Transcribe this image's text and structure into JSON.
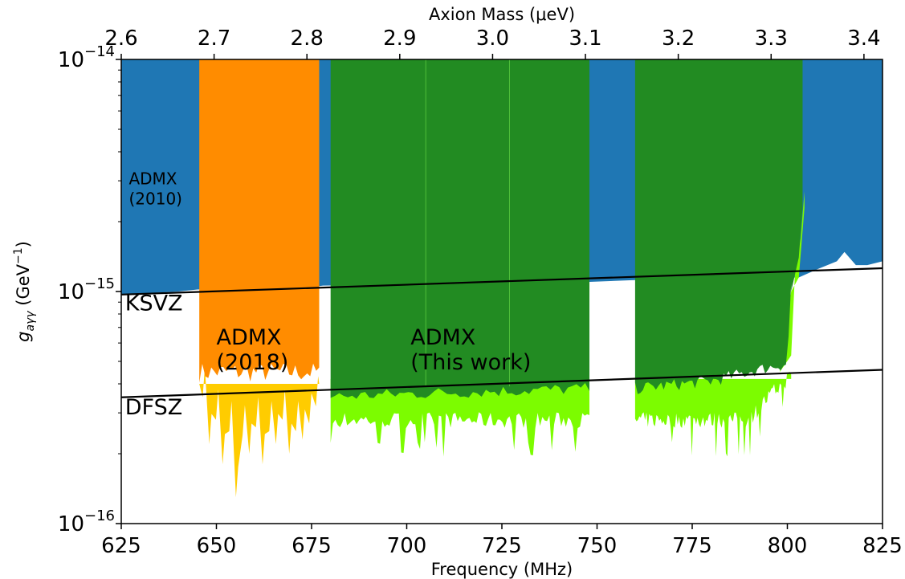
{
  "chart_data": {
    "type": "area",
    "title": "",
    "xlabel": "Frequency (MHz)",
    "ylabel": "g_{aγγ} (GeV⁻¹)",
    "ylabel_parts": {
      "symbol": "g",
      "sub": "aγγ",
      "unit": "(GeV",
      "exp": "−1",
      "close": ")"
    },
    "xlabel_top": "Axion Mass (μeV)",
    "xlim": [
      625,
      825
    ],
    "ylim": [
      1e-16,
      1e-14
    ],
    "yscale": "log",
    "xticks": [
      625,
      650,
      675,
      700,
      725,
      750,
      775,
      800,
      825
    ],
    "xtick_labels": [
      "625",
      "650",
      "675",
      "700",
      "725",
      "750",
      "775",
      "800",
      "825"
    ],
    "top_ticks": [
      2.6,
      2.7,
      2.8,
      2.9,
      3.0,
      3.1,
      3.2,
      3.3,
      3.4
    ],
    "top_tick_labels": [
      "2.6",
      "2.7",
      "2.8",
      "2.9",
      "3.0",
      "3.1",
      "3.2",
      "3.3",
      "3.4"
    ],
    "yticks": [
      {
        "base": "10",
        "exp": "−14",
        "value": 1e-14
      },
      {
        "base": "10",
        "exp": "−15",
        "value": 1e-15
      },
      {
        "base": "10",
        "exp": "−16",
        "value": 1e-16
      }
    ],
    "grid": false,
    "colors": {
      "admx2010": "#1f77b4",
      "admx2018": "#ff8c00",
      "admx2018_light": "#ffcc00",
      "this_work": "#228b22",
      "this_work_light": "#7cfc00",
      "model_line": "#000000"
    },
    "series": [
      {
        "name": "ADMX (2010)",
        "x": [
          625,
          640,
          645,
          676,
          678,
          748,
          760,
          803,
          808,
          813,
          815,
          818,
          821,
          825
        ],
        "lower": [
          9.7e-16,
          1e-15,
          1.02e-15,
          1.05e-15,
          1.06e-15,
          1.1e-15,
          1.12e-15,
          1.15e-15,
          1.25e-15,
          1.35e-15,
          1.48e-15,
          1.3e-15,
          1.3e-15,
          1.35e-15
        ],
        "upper": 1e-14
      },
      {
        "name": "ADMX (2018)",
        "x": [
          645.5,
          677
        ],
        "lower_dark": 4.5e-16,
        "lower_light": [
          3.5e-16,
          2.2e-16,
          2.8e-16,
          1.8e-16,
          2.5e-16,
          1.3e-16,
          2.4e-16,
          2e-16,
          2.6e-16,
          1.8e-16,
          2.5e-16,
          2.2e-16,
          2.8e-16,
          2e-16,
          2.5e-16,
          2.3e-16,
          2.7e-16,
          3.2e-16
        ],
        "upper": 1e-14
      },
      {
        "name": "ADMX (This work)",
        "segments": [
          [
            680,
            748
          ],
          [
            760,
            801
          ]
        ],
        "lower_dark": [
          [
            680,
            3.6e-16
          ],
          [
            700,
            3.7e-16
          ],
          [
            748,
            3.9e-16
          ],
          [
            760,
            3.9e-16
          ],
          [
            780,
            4.2e-16
          ],
          [
            790,
            4.6e-16
          ],
          [
            800,
            5e-16
          ],
          [
            801,
            1.1e-15
          ],
          [
            804,
            2.3e-15
          ]
        ],
        "lower_light_typical": 2.8e-16,
        "upper": 1e-14
      }
    ],
    "lines": [
      {
        "name": "KSVZ",
        "x": [
          625,
          825
        ],
        "y": [
          9.7e-16,
          1.26e-15
        ]
      },
      {
        "name": "DFSZ",
        "x": [
          625,
          825
        ],
        "y": [
          3.5e-16,
          4.6e-16
        ]
      }
    ],
    "annotations": [
      {
        "lines": [
          "ADMX",
          "(2010)"
        ],
        "x": 627,
        "y": 2.9e-15,
        "size": "small"
      },
      {
        "lines": [
          "ADMX",
          "(2018)"
        ],
        "x": 650,
        "y": 5.9e-16,
        "size": "large"
      },
      {
        "lines": [
          "ADMX",
          "(This work)"
        ],
        "x": 701,
        "y": 5.9e-16,
        "size": "large"
      },
      {
        "lines": [
          "KSVZ"
        ],
        "x": 626,
        "y": 8.3e-16,
        "size": "large"
      },
      {
        "lines": [
          "DFSZ"
        ],
        "x": 626,
        "y": 2.95e-16,
        "size": "large"
      }
    ]
  }
}
